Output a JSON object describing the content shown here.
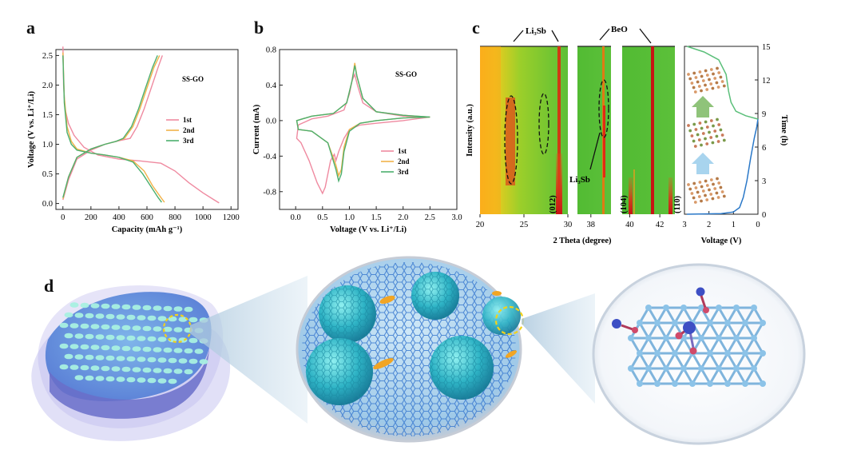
{
  "panels": {
    "a": "a",
    "b": "b",
    "c": "c",
    "d": "d"
  },
  "colors": {
    "cycle1": "#ef8aa0",
    "cycle2": "#f2b24a",
    "cycle3": "#4caf6e",
    "voltage_curve": "#2a78c8",
    "time_curve": "#5bbf7a"
  },
  "chart_data": [
    {
      "id": "a",
      "type": "line",
      "label": "SS-GO",
      "xlabel": "Capacity (mAh g⁻¹)",
      "ylabel": "Voltage (V vs. Li⁺/Li)",
      "xlim": [
        -50,
        1250
      ],
      "ylim": [
        -0.1,
        2.6
      ],
      "xticks": [
        0,
        200,
        400,
        600,
        800,
        1000,
        1200
      ],
      "yticks": [
        0.0,
        0.5,
        1.0,
        1.5,
        2.0,
        2.5
      ],
      "xtick_labels": [
        "0",
        "200",
        "400",
        "600",
        "800",
        "1000",
        "1200"
      ],
      "ytick_labels": [
        "0.0",
        "0.5",
        "1.0",
        "1.5",
        "2.0",
        "2.5"
      ],
      "series": [
        {
          "name": "1st",
          "color": "#ef8aa0",
          "discharge": [
            [
              0,
              2.65
            ],
            [
              5,
              2.0
            ],
            [
              15,
              1.6
            ],
            [
              40,
              1.35
            ],
            [
              80,
              1.15
            ],
            [
              150,
              0.95
            ],
            [
              250,
              0.82
            ],
            [
              400,
              0.75
            ],
            [
              550,
              0.72
            ],
            [
              700,
              0.68
            ],
            [
              800,
              0.55
            ],
            [
              900,
              0.35
            ],
            [
              1000,
              0.18
            ],
            [
              1080,
              0.06
            ],
            [
              1115,
              0.01
            ]
          ],
          "charge": [
            [
              0,
              0.06
            ],
            [
              40,
              0.4
            ],
            [
              100,
              0.75
            ],
            [
              200,
              0.9
            ],
            [
              300,
              1.0
            ],
            [
              400,
              1.06
            ],
            [
              480,
              1.1
            ],
            [
              530,
              1.3
            ],
            [
              580,
              1.6
            ],
            [
              630,
              1.95
            ],
            [
              680,
              2.3
            ],
            [
              710,
              2.5
            ]
          ]
        },
        {
          "name": "2nd",
          "color": "#f2b24a",
          "discharge": [
            [
              0,
              2.55
            ],
            [
              10,
              1.8
            ],
            [
              30,
              1.3
            ],
            [
              60,
              1.05
            ],
            [
              100,
              0.92
            ],
            [
              200,
              0.85
            ],
            [
              300,
              0.82
            ],
            [
              400,
              0.78
            ],
            [
              500,
              0.72
            ],
            [
              580,
              0.55
            ],
            [
              640,
              0.3
            ],
            [
              700,
              0.1
            ],
            [
              725,
              0.02
            ]
          ],
          "charge": [
            [
              0,
              0.08
            ],
            [
              40,
              0.45
            ],
            [
              100,
              0.78
            ],
            [
              200,
              0.92
            ],
            [
              300,
              1.0
            ],
            [
              380,
              1.05
            ],
            [
              440,
              1.1
            ],
            [
              500,
              1.3
            ],
            [
              550,
              1.6
            ],
            [
              600,
              1.95
            ],
            [
              650,
              2.3
            ],
            [
              690,
              2.5
            ]
          ]
        },
        {
          "name": "3rd",
          "color": "#4caf6e",
          "discharge": [
            [
              0,
              2.5
            ],
            [
              10,
              1.7
            ],
            [
              30,
              1.2
            ],
            [
              60,
              1.0
            ],
            [
              100,
              0.9
            ],
            [
              200,
              0.85
            ],
            [
              300,
              0.82
            ],
            [
              400,
              0.78
            ],
            [
              500,
              0.7
            ],
            [
              570,
              0.5
            ],
            [
              630,
              0.28
            ],
            [
              680,
              0.1
            ],
            [
              705,
              0.02
            ]
          ],
          "charge": [
            [
              0,
              0.1
            ],
            [
              40,
              0.45
            ],
            [
              100,
              0.78
            ],
            [
              200,
              0.92
            ],
            [
              300,
              1.0
            ],
            [
              380,
              1.05
            ],
            [
              430,
              1.1
            ],
            [
              490,
              1.3
            ],
            [
              540,
              1.6
            ],
            [
              590,
              1.95
            ],
            [
              640,
              2.3
            ],
            [
              675,
              2.5
            ]
          ]
        }
      ]
    },
    {
      "id": "b",
      "type": "line",
      "label": "SS-GO",
      "xlabel": "Voltage (V vs. Li⁺/Li)",
      "ylabel": "Current (mA)",
      "xlim": [
        -0.3,
        3.0
      ],
      "ylim": [
        -1.0,
        0.8
      ],
      "xticks": [
        0.0,
        0.5,
        1.0,
        1.5,
        2.0,
        2.5,
        3.0
      ],
      "yticks": [
        -0.8,
        -0.4,
        0.0,
        0.4,
        0.8
      ],
      "xtick_labels": [
        "0.0",
        "0.5",
        "1.0",
        "1.5",
        "2.0",
        "2.5",
        "3.0"
      ],
      "ytick_labels": [
        "-0.8",
        "-0.4",
        "0.0",
        "0.4",
        "0.8"
      ],
      "series": [
        {
          "name": "1st",
          "color": "#ef8aa0",
          "points": [
            [
              2.5,
              0.04
            ],
            [
              2.0,
              0.0
            ],
            [
              1.5,
              -0.03
            ],
            [
              1.2,
              -0.05
            ],
            [
              1.0,
              -0.1
            ],
            [
              0.9,
              -0.2
            ],
            [
              0.8,
              -0.35
            ],
            [
              0.75,
              -0.45
            ],
            [
              0.72,
              -0.38
            ],
            [
              0.65,
              -0.45
            ],
            [
              0.55,
              -0.75
            ],
            [
              0.5,
              -0.82
            ],
            [
              0.4,
              -0.7
            ],
            [
              0.25,
              -0.45
            ],
            [
              0.1,
              -0.25
            ],
            [
              0.02,
              -0.2
            ],
            [
              0.05,
              -0.05
            ],
            [
              0.3,
              0.02
            ],
            [
              0.6,
              0.05
            ],
            [
              0.9,
              0.12
            ],
            [
              1.0,
              0.3
            ],
            [
              1.05,
              0.45
            ],
            [
              1.1,
              0.52
            ],
            [
              1.15,
              0.4
            ],
            [
              1.25,
              0.2
            ],
            [
              1.5,
              0.1
            ],
            [
              2.0,
              0.05
            ],
            [
              2.5,
              0.04
            ]
          ]
        },
        {
          "name": "2nd",
          "color": "#f2b24a",
          "points": [
            [
              2.5,
              0.04
            ],
            [
              2.0,
              0.03
            ],
            [
              1.5,
              0.0
            ],
            [
              1.2,
              -0.03
            ],
            [
              1.0,
              -0.1
            ],
            [
              0.9,
              -0.3
            ],
            [
              0.85,
              -0.55
            ],
            [
              0.8,
              -0.62
            ],
            [
              0.75,
              -0.5
            ],
            [
              0.6,
              -0.25
            ],
            [
              0.3,
              -0.12
            ],
            [
              0.05,
              -0.1
            ],
            [
              0.02,
              0.0
            ],
            [
              0.3,
              0.05
            ],
            [
              0.7,
              0.08
            ],
            [
              0.95,
              0.2
            ],
            [
              1.05,
              0.45
            ],
            [
              1.1,
              0.65
            ],
            [
              1.14,
              0.5
            ],
            [
              1.25,
              0.25
            ],
            [
              1.5,
              0.1
            ],
            [
              2.0,
              0.06
            ],
            [
              2.5,
              0.04
            ]
          ]
        },
        {
          "name": "3rd",
          "color": "#4caf6e",
          "points": [
            [
              2.5,
              0.04
            ],
            [
              2.0,
              0.03
            ],
            [
              1.5,
              0.0
            ],
            [
              1.2,
              -0.03
            ],
            [
              1.0,
              -0.12
            ],
            [
              0.9,
              -0.35
            ],
            [
              0.85,
              -0.6
            ],
            [
              0.8,
              -0.68
            ],
            [
              0.75,
              -0.55
            ],
            [
              0.6,
              -0.25
            ],
            [
              0.3,
              -0.12
            ],
            [
              0.05,
              -0.1
            ],
            [
              0.02,
              0.0
            ],
            [
              0.3,
              0.05
            ],
            [
              0.7,
              0.08
            ],
            [
              0.95,
              0.2
            ],
            [
              1.05,
              0.45
            ],
            [
              1.1,
              0.62
            ],
            [
              1.14,
              0.5
            ],
            [
              1.25,
              0.25
            ],
            [
              1.5,
              0.1
            ],
            [
              2.0,
              0.06
            ],
            [
              2.5,
              0.04
            ]
          ]
        }
      ]
    },
    {
      "id": "c",
      "type": "heatmap",
      "ylabel": "Intensity (a.u.)",
      "xlabel": "2 Theta (degree)",
      "windows": [
        {
          "xlim": [
            20,
            30
          ],
          "xticks": [
            20,
            25,
            30
          ],
          "xtick_labels": [
            "20",
            "25",
            "30"
          ],
          "peak_label": "(012)"
        },
        {
          "xlim": [
            37,
            39.5
          ],
          "xticks": [
            38
          ],
          "xtick_labels": [
            "38"
          ],
          "peak_label": ""
        },
        {
          "xlim": [
            39.5,
            43
          ],
          "xticks": [
            40,
            42
          ],
          "xtick_labels": [
            "40",
            "42"
          ],
          "peak_label_left": "(104)",
          "peak_label_right": "(110)"
        }
      ],
      "annotations": {
        "li3sb_top": "Li₃Sb",
        "beo": "BeO",
        "li3sb_mid": "Li₃Sb"
      },
      "voltage_panel": {
        "xlabel": "Voltage (V)",
        "xlim": [
          3,
          0
        ],
        "xticks": [
          3,
          2,
          1,
          0
        ],
        "xtick_labels": [
          "3",
          "2",
          "1",
          "0"
        ],
        "y2label": "Time (h)",
        "ylim": [
          0,
          15
        ],
        "yticks": [
          0,
          3,
          6,
          9,
          12,
          15
        ],
        "ytick_labels": [
          "0",
          "3",
          "6",
          "9",
          "12",
          "15"
        ],
        "discharge": [
          [
            2.9,
            0.0
          ],
          [
            1.5,
            0.05
          ],
          [
            1.0,
            0.2
          ],
          [
            0.75,
            0.6
          ],
          [
            0.6,
            1.5
          ],
          [
            0.45,
            3.0
          ],
          [
            0.3,
            5.0
          ],
          [
            0.15,
            6.8
          ],
          [
            0.05,
            7.8
          ],
          [
            0.0,
            8.5
          ]
        ],
        "charge": [
          [
            0.0,
            8.5
          ],
          [
            0.5,
            8.8
          ],
          [
            0.9,
            9.2
          ],
          [
            1.1,
            10.0
          ],
          [
            1.2,
            11.0
          ],
          [
            1.3,
            12.5
          ],
          [
            1.6,
            13.8
          ],
          [
            2.2,
            14.5
          ],
          [
            2.9,
            15.0
          ]
        ]
      }
    }
  ]
}
